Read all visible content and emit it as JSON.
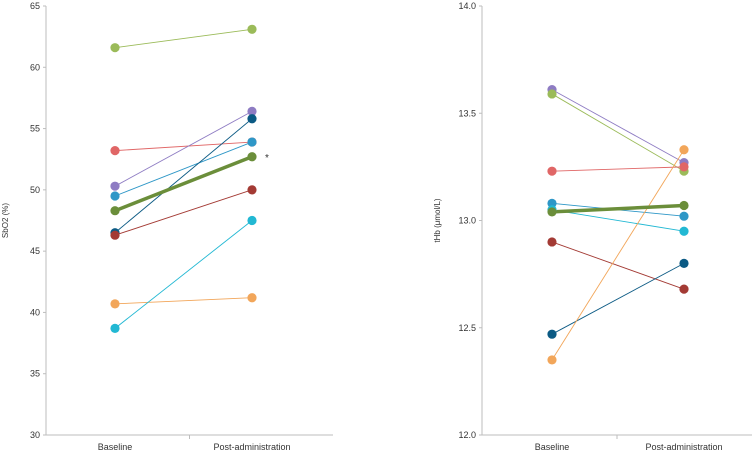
{
  "chart_data": [
    {
      "type": "line",
      "ylabel": "SbO2 (%)",
      "categories": [
        "Baseline",
        "Post-administration"
      ],
      "ylim": [
        30,
        65
      ],
      "yticks": [
        30,
        35,
        40,
        45,
        50,
        55,
        60,
        65
      ],
      "grid": false,
      "series": [
        {
          "color": "#9bbb59",
          "values": [
            61.6,
            63.1
          ]
        },
        {
          "color": "#e06666",
          "values": [
            53.2,
            53.9
          ]
        },
        {
          "color": "#8e7cc3",
          "values": [
            50.3,
            56.4
          ]
        },
        {
          "color": "#2e97c7",
          "values": [
            49.5,
            53.9
          ]
        },
        {
          "color": "#0b5a84",
          "values": [
            46.5,
            55.8
          ]
        },
        {
          "color": "#a33a34",
          "values": [
            46.3,
            50.0
          ]
        },
        {
          "color": "#f2a65a",
          "values": [
            40.7,
            41.2
          ]
        },
        {
          "color": "#22b8d3",
          "values": [
            38.7,
            47.5
          ]
        },
        {
          "color": "#6b8e3a",
          "values": [
            48.3,
            52.7
          ],
          "mean": true
        }
      ],
      "annotation": {
        "text": "*",
        "category": "Post-administration",
        "y": 52.7
      }
    },
    {
      "type": "line",
      "ylabel": "tHb (μmol/L)",
      "categories": [
        "Baseline",
        "Post-administration"
      ],
      "ylim": [
        12.0,
        14.0
      ],
      "yticks": [
        "12.0",
        "12.5",
        "13.0",
        "13.5",
        "14.0"
      ],
      "grid": false,
      "series": [
        {
          "color": "#8e7cc3",
          "values": [
            13.61,
            13.27
          ]
        },
        {
          "color": "#9bbb59",
          "values": [
            13.59,
            13.23
          ]
        },
        {
          "color": "#e06666",
          "values": [
            13.23,
            13.25
          ]
        },
        {
          "color": "#2e97c7",
          "values": [
            13.08,
            13.02
          ]
        },
        {
          "color": "#22b8d3",
          "values": [
            13.05,
            12.95
          ]
        },
        {
          "color": "#a33a34",
          "values": [
            12.9,
            12.68
          ]
        },
        {
          "color": "#0b5a84",
          "values": [
            12.47,
            12.8
          ]
        },
        {
          "color": "#f2a65a",
          "values": [
            12.35,
            13.33
          ]
        },
        {
          "color": "#6b8e3a",
          "values": [
            13.04,
            13.07
          ],
          "mean": true
        }
      ]
    }
  ]
}
